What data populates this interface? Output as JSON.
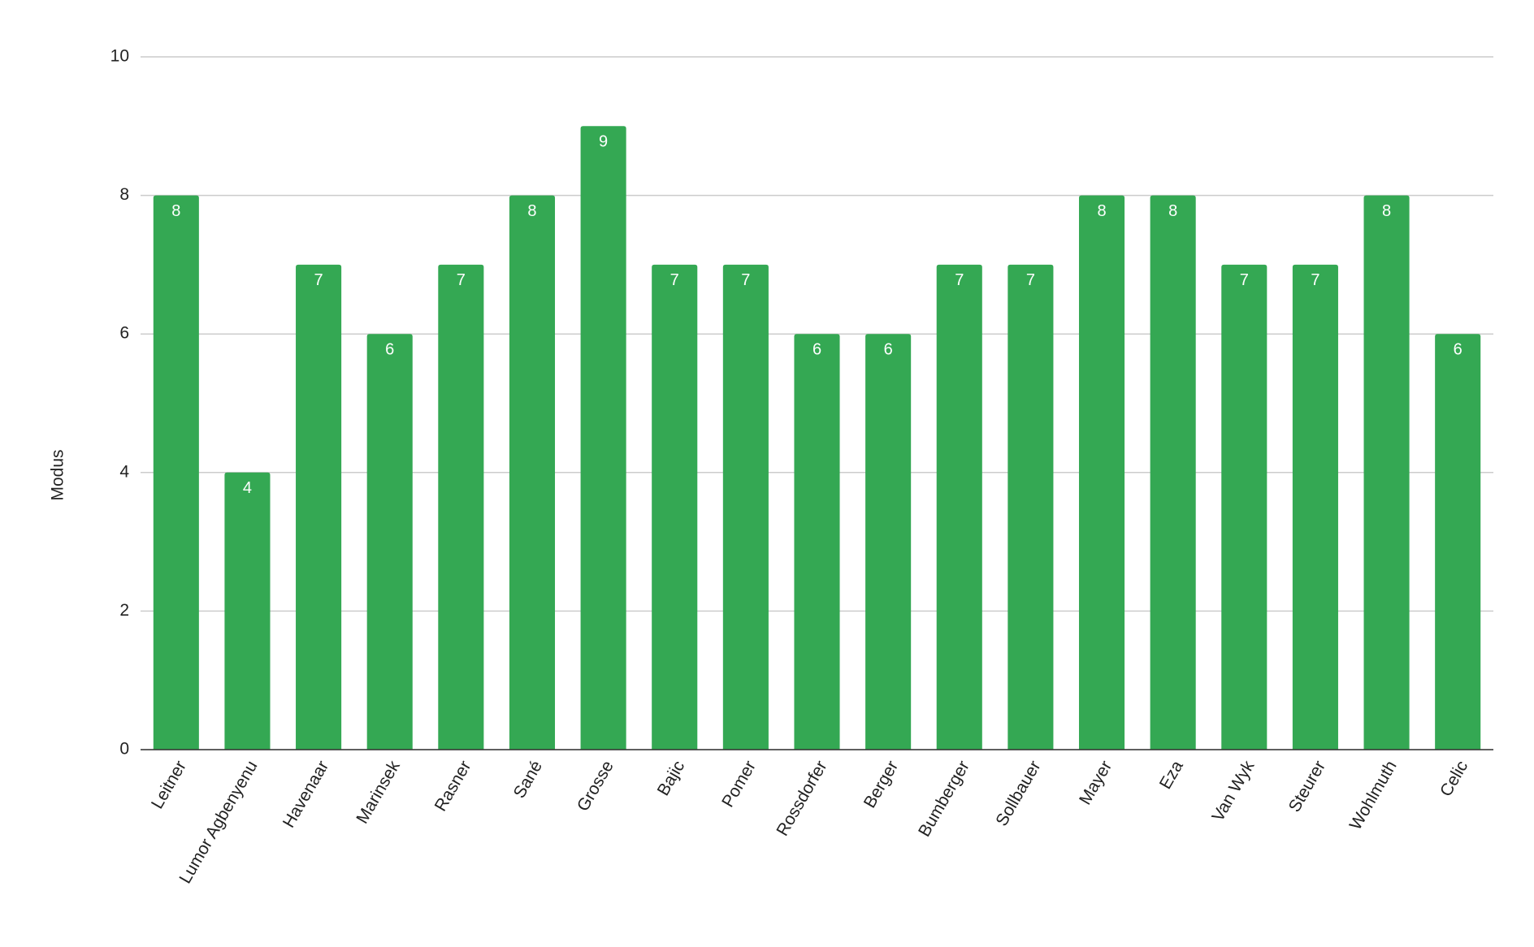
{
  "chart_data": {
    "type": "bar",
    "y_label": "Modus",
    "categories": [
      "Leitner",
      "Lumor Agbenyenu",
      "Havenaar",
      "Marinsek",
      "Rasner",
      "Sané",
      "Grosse",
      "Bajic",
      "Pomer",
      "Rossdorfer",
      "Berger",
      "Bumberger",
      "Sollbauer",
      "Mayer",
      "Eza",
      "Van Wyk",
      "Steurer",
      "Wohlmuth",
      "Celic"
    ],
    "values": [
      8,
      4,
      7,
      6,
      7,
      8,
      9,
      7,
      7,
      6,
      6,
      7,
      7,
      8,
      8,
      7,
      7,
      8,
      6
    ],
    "color": "#34a853",
    "ylim": [
      0,
      10
    ],
    "yticks": [
      0,
      2,
      4,
      6,
      8,
      10
    ],
    "grid": true
  }
}
